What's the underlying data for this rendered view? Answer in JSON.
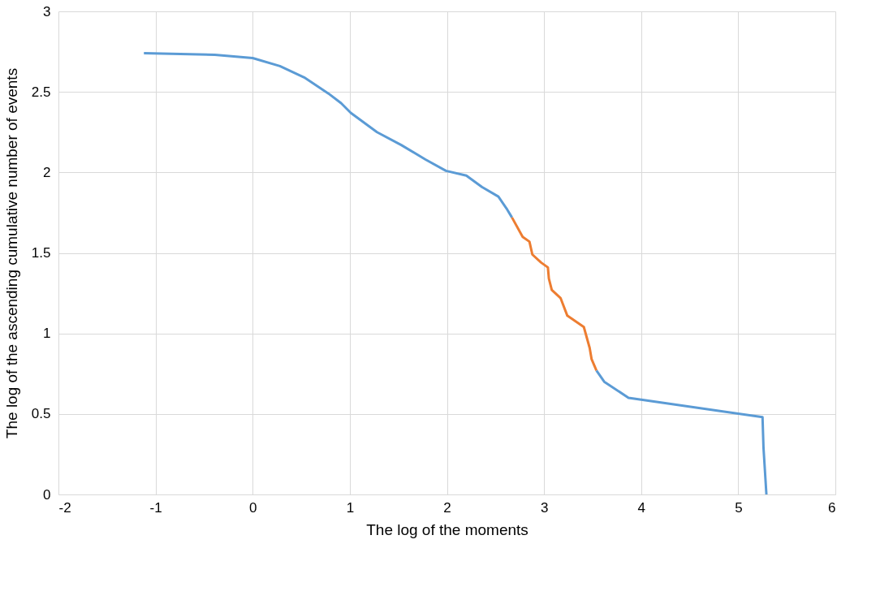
{
  "chart_data": {
    "type": "line",
    "xlabel": "The log of the moments",
    "ylabel": "The log of the ascending cumulative number of events",
    "xlim": [
      -2,
      6
    ],
    "ylim": [
      0,
      3
    ],
    "xticks": [
      -2,
      -1,
      0,
      1,
      2,
      3,
      4,
      5,
      6
    ],
    "yticks": [
      0,
      0.5,
      1,
      1.5,
      2,
      2.5,
      3
    ],
    "grid": true,
    "series": [
      {
        "color": "#5b9bd5",
        "x": [
          -1.12,
          -0.39,
          0,
          0.28,
          0.53,
          0.78,
          0.91,
          1.01,
          1.28,
          1.53,
          1.78,
          1.99,
          2.2,
          2.36,
          2.53,
          2.62,
          2.67
        ],
        "values": [
          2.74,
          2.73,
          2.71,
          2.66,
          2.59,
          2.49,
          2.43,
          2.37,
          2.25,
          2.17,
          2.08,
          2.01,
          1.98,
          1.91,
          1.85,
          1.77,
          1.72
        ]
      },
      {
        "color": "#ed7d31",
        "x": [
          2.67,
          2.78,
          2.85,
          2.88,
          2.97,
          3.04,
          3.05,
          3.08,
          3.17,
          3.24,
          3.41,
          3.47,
          3.49,
          3.54
        ],
        "values": [
          1.72,
          1.6,
          1.57,
          1.49,
          1.44,
          1.41,
          1.34,
          1.27,
          1.22,
          1.11,
          1.04,
          0.91,
          0.84,
          0.77
        ]
      },
      {
        "color": "#5b9bd5",
        "x": [
          3.54,
          3.62,
          3.87,
          5.25,
          5.26,
          5.29
        ],
        "values": [
          0.77,
          0.7,
          0.6,
          0.48,
          0.29,
          0
        ]
      }
    ]
  }
}
